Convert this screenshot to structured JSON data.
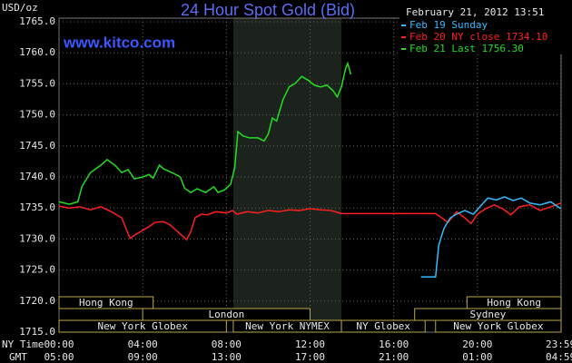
{
  "chart_data": {
    "type": "line",
    "title": "24 Hour Spot Gold (Bid)",
    "site": "www.kitco.com",
    "y_label": "USD/oz",
    "timestamp": "February 21, 2012 13:51",
    "x_label": "NY Time",
    "x2_label": "GMT",
    "xlim": [
      0,
      24
    ],
    "xticks": [
      {
        "value": 0,
        "label": "00:00"
      },
      {
        "value": 4,
        "label": "04:00"
      },
      {
        "value": 8,
        "label": "08:00"
      },
      {
        "value": 12,
        "label": "12:00"
      },
      {
        "value": 16,
        "label": "16:00"
      },
      {
        "value": 20,
        "label": "20:00"
      },
      {
        "value": 23.98,
        "label": "23:59"
      }
    ],
    "x2tick_labels": [
      "05:00",
      "09:00",
      "13:00",
      "17:00",
      "21:00",
      "01:00",
      "04:59"
    ],
    "ylim": [
      1715,
      1765
    ],
    "yticks": [
      {
        "value": 1715,
        "label": "1715.0"
      },
      {
        "value": 1720,
        "label": "1720.0"
      },
      {
        "value": 1725,
        "label": "1725.0"
      },
      {
        "value": 1730,
        "label": "1730.0"
      },
      {
        "value": 1735,
        "label": "1735.0"
      },
      {
        "value": 1740,
        "label": "1740.0"
      },
      {
        "value": 1745,
        "label": "1745.0"
      },
      {
        "value": 1750,
        "label": "1750.0"
      },
      {
        "value": 1755,
        "label": "1755.0"
      },
      {
        "value": 1760,
        "label": "1760.0"
      },
      {
        "value": 1765,
        "label": "1765.0"
      }
    ],
    "grid": true,
    "sessions": [
      {
        "name": "Hong Kong",
        "start": 0,
        "end": 4.5,
        "row": 0
      },
      {
        "name": "Hong Kong",
        "start": 19.5,
        "end": 24,
        "row": 0
      },
      {
        "name": "London",
        "start": 4,
        "end": 12,
        "row": 1
      },
      {
        "name": "Sydney",
        "start": 17,
        "end": 24,
        "row": 1
      },
      {
        "name": "New York Globex",
        "start": 0,
        "end": 8,
        "row": 2
      },
      {
        "name": "New York NYMEX",
        "start": 8.33,
        "end": 13.5,
        "row": 2,
        "shaded": true
      },
      {
        "name": "NY Globex",
        "start": 13.5,
        "end": 17.5,
        "row": 2
      },
      {
        "name": "New York Globex",
        "start": 18,
        "end": 24,
        "row": 2
      }
    ],
    "series": [
      {
        "name": "Feb 19 Sunday",
        "color": "#33bbff",
        "x": [
          17.3,
          18.0,
          18.15,
          18.4,
          18.7,
          19.0,
          19.4,
          19.8,
          20.2,
          20.5,
          20.9,
          21.3,
          21.7,
          22.1,
          22.5,
          23.0,
          23.5,
          23.98
        ],
        "values": [
          1723.9,
          1723.9,
          1729,
          1731.7,
          1733.4,
          1734,
          1734.6,
          1734,
          1735.5,
          1736.6,
          1736.3,
          1736.8,
          1736.2,
          1736.6,
          1735.8,
          1735.5,
          1736,
          1734.9
        ]
      },
      {
        "name": "Feb 20 NY close 1734.10",
        "color": "#ff2020",
        "x": [
          0,
          0.5,
          1,
          1.5,
          2,
          2.5,
          3,
          3.2,
          3.4,
          3.7,
          4,
          4.3,
          4.6,
          5,
          5.3,
          5.6,
          5.9,
          6.1,
          6.3,
          6.5,
          6.8,
          7.1,
          7.5,
          8,
          8.3,
          8.5,
          9,
          9.5,
          10,
          10.5,
          11,
          11.5,
          12,
          12.5,
          13,
          13.3,
          13.5,
          18,
          18.3,
          18.6,
          19,
          19.4,
          19.7,
          20,
          20.4,
          20.8,
          21.2,
          21.6,
          22,
          22.5,
          23,
          23.5,
          24
        ],
        "values": [
          1735.3,
          1735,
          1735.2,
          1734.7,
          1735.2,
          1734.4,
          1733.4,
          1731.7,
          1730.1,
          1730.8,
          1731.4,
          1732,
          1732.7,
          1732.8,
          1732.3,
          1731.4,
          1730.5,
          1729.9,
          1731.2,
          1733.4,
          1734,
          1733.9,
          1734.4,
          1734.2,
          1734.6,
          1734,
          1734.4,
          1734.2,
          1734.6,
          1734.4,
          1734.7,
          1734.6,
          1734.9,
          1734.7,
          1734.6,
          1734.3,
          1734.1,
          1734.1,
          1733.4,
          1732.7,
          1734.4,
          1733.4,
          1732.5,
          1734,
          1734.9,
          1735.5,
          1734.9,
          1733.9,
          1735.2,
          1735.5,
          1734.6,
          1735.2,
          1735.8
        ]
      },
      {
        "name": "Feb 21 Last 1756.30",
        "color": "#22dd22",
        "x": [
          0,
          0.5,
          0.9,
          1.1,
          1.5,
          2,
          2.3,
          2.7,
          3,
          3.3,
          3.6,
          4,
          4.3,
          4.5,
          4.8,
          5,
          5.4,
          5.8,
          6,
          6.3,
          6.6,
          7,
          7.4,
          7.6,
          7.9,
          8.2,
          8.4,
          8.55,
          8.8,
          9.1,
          9.5,
          9.8,
          10,
          10.2,
          10.4,
          10.7,
          11,
          11.3,
          11.6,
          11.9,
          12.2,
          12.5,
          12.8,
          13.1,
          13.3,
          13.5,
          13.7,
          13.8,
          13.95
        ],
        "values": [
          1736,
          1735.6,
          1736,
          1738.5,
          1740.7,
          1741.9,
          1742.8,
          1741.8,
          1740.7,
          1741.2,
          1739.7,
          1740,
          1740.4,
          1739.8,
          1741.9,
          1741.3,
          1740.7,
          1740,
          1738.2,
          1737.5,
          1738.1,
          1737.5,
          1738.4,
          1737.5,
          1737.9,
          1738.8,
          1741.5,
          1747.3,
          1746.6,
          1746.3,
          1746.3,
          1745.8,
          1746.9,
          1749.5,
          1749,
          1752.4,
          1754.5,
          1755.1,
          1756.2,
          1755.6,
          1754.8,
          1754.5,
          1754.8,
          1753.9,
          1752.9,
          1754.5,
          1757.5,
          1758.3,
          1756.5
        ]
      }
    ]
  }
}
